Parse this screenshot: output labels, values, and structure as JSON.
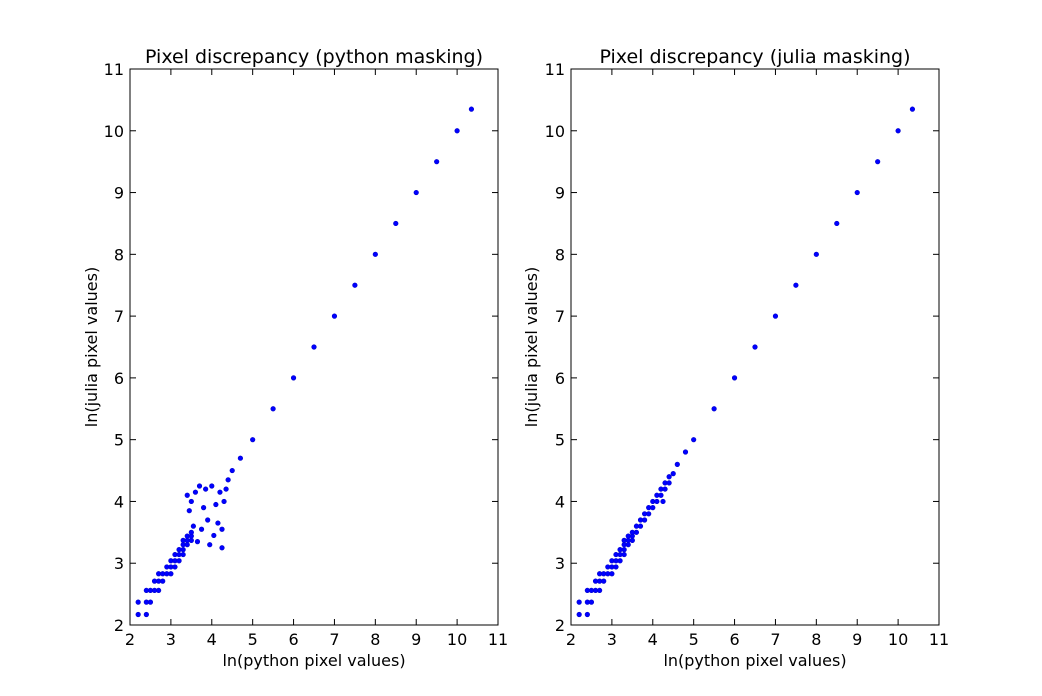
{
  "chart_data": [
    {
      "type": "scatter",
      "title": "Pixel discrepancy (python masking)",
      "xlabel": "ln(python pixel values)",
      "ylabel": "ln(julia pixel values)",
      "xlim": [
        2,
        11
      ],
      "ylim": [
        2,
        11
      ],
      "xticks": [
        "2",
        "3",
        "4",
        "5",
        "6",
        "7",
        "8",
        "9",
        "10",
        "11"
      ],
      "yticks": [
        "2",
        "3",
        "4",
        "5",
        "6",
        "7",
        "8",
        "9",
        "10",
        "11"
      ],
      "grid": false,
      "marker_color": "#0000ff",
      "series": [
        {
          "points": [
            [
              2.2,
              2.17
            ],
            [
              2.2,
              2.37
            ],
            [
              2.4,
              2.17
            ],
            [
              2.4,
              2.37
            ],
            [
              2.4,
              2.56
            ],
            [
              2.5,
              2.37
            ],
            [
              2.5,
              2.56
            ],
            [
              2.6,
              2.56
            ],
            [
              2.6,
              2.71
            ],
            [
              2.7,
              2.56
            ],
            [
              2.7,
              2.71
            ],
            [
              2.7,
              2.83
            ],
            [
              2.8,
              2.71
            ],
            [
              2.8,
              2.83
            ],
            [
              2.9,
              2.83
            ],
            [
              2.9,
              2.94
            ],
            [
              3.0,
              2.83
            ],
            [
              3.0,
              2.94
            ],
            [
              3.0,
              3.04
            ],
            [
              3.1,
              2.94
            ],
            [
              3.1,
              3.04
            ],
            [
              3.1,
              3.14
            ],
            [
              3.2,
              3.04
            ],
            [
              3.2,
              3.14
            ],
            [
              3.2,
              3.22
            ],
            [
              3.3,
              3.14
            ],
            [
              3.3,
              3.22
            ],
            [
              3.3,
              3.3
            ],
            [
              3.3,
              3.37
            ],
            [
              3.4,
              3.3
            ],
            [
              3.4,
              3.37
            ],
            [
              3.4,
              3.44
            ],
            [
              3.5,
              3.37
            ],
            [
              3.5,
              3.44
            ],
            [
              3.5,
              3.5
            ],
            [
              3.4,
              4.1
            ],
            [
              3.45,
              3.85
            ],
            [
              3.5,
              4.0
            ],
            [
              3.55,
              3.6
            ],
            [
              3.6,
              4.15
            ],
            [
              3.65,
              3.35
            ],
            [
              3.7,
              4.25
            ],
            [
              3.75,
              3.55
            ],
            [
              3.8,
              3.9
            ],
            [
              3.85,
              4.2
            ],
            [
              3.9,
              3.7
            ],
            [
              3.95,
              3.3
            ],
            [
              4.0,
              4.25
            ],
            [
              4.05,
              3.45
            ],
            [
              4.1,
              3.95
            ],
            [
              4.15,
              3.65
            ],
            [
              4.2,
              4.15
            ],
            [
              4.25,
              3.55
            ],
            [
              4.25,
              3.25
            ],
            [
              4.3,
              4.0
            ],
            [
              4.35,
              4.2
            ],
            [
              4.4,
              4.35
            ],
            [
              4.5,
              4.5
            ],
            [
              4.7,
              4.7
            ],
            [
              5.0,
              5.0
            ],
            [
              5.5,
              5.5
            ],
            [
              6.0,
              6.0
            ],
            [
              6.5,
              6.5
            ],
            [
              7.0,
              7.0
            ],
            [
              7.5,
              7.5
            ],
            [
              8.0,
              8.0
            ],
            [
              8.5,
              8.5
            ],
            [
              9.0,
              9.0
            ],
            [
              9.5,
              9.5
            ],
            [
              10.0,
              10.0
            ],
            [
              10.35,
              10.35
            ]
          ]
        }
      ]
    },
    {
      "type": "scatter",
      "title": "Pixel discrepancy (julia masking)",
      "xlabel": "ln(python pixel values)",
      "ylabel": "ln(julia pixel values)",
      "xlim": [
        2,
        11
      ],
      "ylim": [
        2,
        11
      ],
      "xticks": [
        "2",
        "3",
        "4",
        "5",
        "6",
        "7",
        "8",
        "9",
        "10",
        "11"
      ],
      "yticks": [
        "2",
        "3",
        "4",
        "5",
        "6",
        "7",
        "8",
        "9",
        "10",
        "11"
      ],
      "grid": false,
      "marker_color": "#0000ff",
      "series": [
        {
          "points": [
            [
              2.2,
              2.17
            ],
            [
              2.2,
              2.37
            ],
            [
              2.4,
              2.17
            ],
            [
              2.4,
              2.37
            ],
            [
              2.4,
              2.56
            ],
            [
              2.5,
              2.37
            ],
            [
              2.5,
              2.56
            ],
            [
              2.6,
              2.56
            ],
            [
              2.6,
              2.71
            ],
            [
              2.7,
              2.56
            ],
            [
              2.7,
              2.71
            ],
            [
              2.7,
              2.83
            ],
            [
              2.8,
              2.71
            ],
            [
              2.8,
              2.83
            ],
            [
              2.9,
              2.83
            ],
            [
              2.9,
              2.94
            ],
            [
              3.0,
              2.83
            ],
            [
              3.0,
              2.94
            ],
            [
              3.0,
              3.04
            ],
            [
              3.1,
              2.94
            ],
            [
              3.1,
              3.04
            ],
            [
              3.1,
              3.14
            ],
            [
              3.2,
              3.04
            ],
            [
              3.2,
              3.14
            ],
            [
              3.2,
              3.22
            ],
            [
              3.3,
              3.14
            ],
            [
              3.3,
              3.22
            ],
            [
              3.3,
              3.3
            ],
            [
              3.3,
              3.37
            ],
            [
              3.4,
              3.3
            ],
            [
              3.4,
              3.37
            ],
            [
              3.4,
              3.44
            ],
            [
              3.5,
              3.37
            ],
            [
              3.5,
              3.44
            ],
            [
              3.5,
              3.5
            ],
            [
              3.6,
              3.5
            ],
            [
              3.6,
              3.6
            ],
            [
              3.7,
              3.6
            ],
            [
              3.7,
              3.7
            ],
            [
              3.8,
              3.7
            ],
            [
              3.8,
              3.8
            ],
            [
              3.9,
              3.8
            ],
            [
              3.9,
              3.9
            ],
            [
              4.0,
              3.9
            ],
            [
              4.0,
              4.0
            ],
            [
              4.1,
              4.0
            ],
            [
              4.1,
              4.1
            ],
            [
              4.2,
              4.1
            ],
            [
              4.2,
              4.2
            ],
            [
              4.3,
              4.2
            ],
            [
              4.3,
              4.3
            ],
            [
              4.4,
              4.3
            ],
            [
              4.4,
              4.4
            ],
            [
              4.5,
              4.45
            ],
            [
              4.25,
              4.0
            ],
            [
              4.6,
              4.6
            ],
            [
              4.8,
              4.8
            ],
            [
              5.0,
              5.0
            ],
            [
              5.5,
              5.5
            ],
            [
              6.0,
              6.0
            ],
            [
              6.5,
              6.5
            ],
            [
              7.0,
              7.0
            ],
            [
              7.5,
              7.5
            ],
            [
              8.0,
              8.0
            ],
            [
              8.5,
              8.5
            ],
            [
              9.0,
              9.0
            ],
            [
              9.5,
              9.5
            ],
            [
              10.0,
              10.0
            ],
            [
              10.35,
              10.35
            ]
          ]
        }
      ]
    }
  ]
}
